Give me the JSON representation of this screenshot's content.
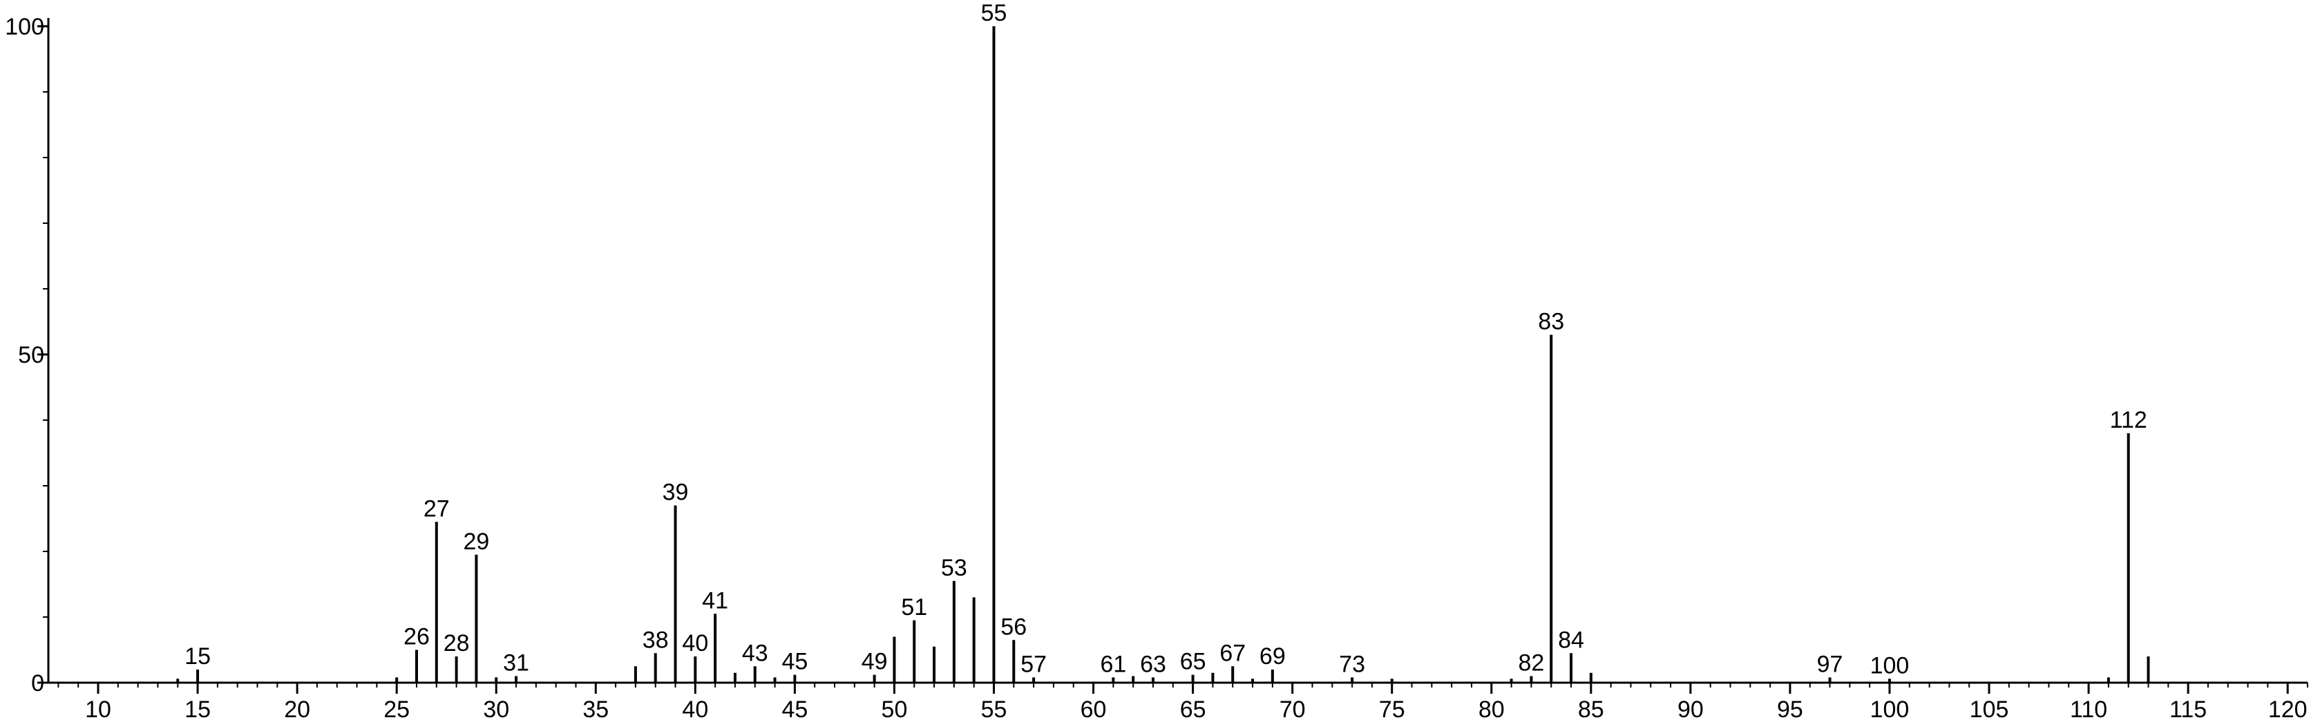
{
  "chart_data": {
    "type": "bar",
    "title": "",
    "xlabel": "",
    "ylabel": "",
    "xlim": [
      7.5,
      121
    ],
    "ylim": [
      0,
      100
    ],
    "grid": false,
    "xticks": [
      10,
      15,
      20,
      25,
      30,
      35,
      40,
      45,
      50,
      55,
      60,
      65,
      70,
      75,
      80,
      85,
      90,
      95,
      100,
      105,
      110,
      115,
      120
    ],
    "yticks": [
      0,
      50,
      100
    ],
    "peaks": [
      {
        "mz": 14,
        "intensity": 0.6,
        "label": ""
      },
      {
        "mz": 15,
        "intensity": 2,
        "label": "15"
      },
      {
        "mz": 25,
        "intensity": 0.8,
        "label": ""
      },
      {
        "mz": 26,
        "intensity": 5,
        "label": "26"
      },
      {
        "mz": 27,
        "intensity": 24.5,
        "label": "27"
      },
      {
        "mz": 28,
        "intensity": 4,
        "label": "28"
      },
      {
        "mz": 29,
        "intensity": 19.5,
        "label": "29"
      },
      {
        "mz": 30,
        "intensity": 0.8,
        "label": ""
      },
      {
        "mz": 31,
        "intensity": 1,
        "label": "31"
      },
      {
        "mz": 37,
        "intensity": 2.5,
        "label": ""
      },
      {
        "mz": 38,
        "intensity": 4.5,
        "label": "38"
      },
      {
        "mz": 39,
        "intensity": 27,
        "label": "39"
      },
      {
        "mz": 40,
        "intensity": 4,
        "label": "40"
      },
      {
        "mz": 41,
        "intensity": 10.5,
        "label": "41"
      },
      {
        "mz": 42,
        "intensity": 1.5,
        "label": ""
      },
      {
        "mz": 43,
        "intensity": 2.5,
        "label": "43"
      },
      {
        "mz": 44,
        "intensity": 0.8,
        "label": ""
      },
      {
        "mz": 45,
        "intensity": 1.2,
        "label": "45"
      },
      {
        "mz": 49,
        "intensity": 1.2,
        "label": "49"
      },
      {
        "mz": 50,
        "intensity": 7,
        "label": ""
      },
      {
        "mz": 51,
        "intensity": 9.5,
        "label": "51"
      },
      {
        "mz": 52,
        "intensity": 5.5,
        "label": ""
      },
      {
        "mz": 53,
        "intensity": 15.5,
        "label": "53"
      },
      {
        "mz": 54,
        "intensity": 13,
        "label": ""
      },
      {
        "mz": 55,
        "intensity": 100,
        "label": "55"
      },
      {
        "mz": 56,
        "intensity": 6.5,
        "label": "56"
      },
      {
        "mz": 57,
        "intensity": 0.8,
        "label": "57"
      },
      {
        "mz": 61,
        "intensity": 0.8,
        "label": "61"
      },
      {
        "mz": 62,
        "intensity": 1,
        "label": ""
      },
      {
        "mz": 63,
        "intensity": 0.8,
        "label": "63"
      },
      {
        "mz": 65,
        "intensity": 1.2,
        "label": "65"
      },
      {
        "mz": 66,
        "intensity": 1.5,
        "label": ""
      },
      {
        "mz": 67,
        "intensity": 2.5,
        "label": "67"
      },
      {
        "mz": 68,
        "intensity": 0.6,
        "label": ""
      },
      {
        "mz": 69,
        "intensity": 2,
        "label": "69"
      },
      {
        "mz": 73,
        "intensity": 0.8,
        "label": "73"
      },
      {
        "mz": 75,
        "intensity": 0.6,
        "label": ""
      },
      {
        "mz": 81,
        "intensity": 0.6,
        "label": ""
      },
      {
        "mz": 82,
        "intensity": 1,
        "label": "82"
      },
      {
        "mz": 83,
        "intensity": 53,
        "label": "83"
      },
      {
        "mz": 84,
        "intensity": 4.5,
        "label": "84"
      },
      {
        "mz": 85,
        "intensity": 1.5,
        "label": ""
      },
      {
        "mz": 97,
        "intensity": 0.8,
        "label": "97"
      },
      {
        "mz": 100,
        "intensity": 0.6,
        "label": "100"
      },
      {
        "mz": 111,
        "intensity": 0.8,
        "label": ""
      },
      {
        "mz": 112,
        "intensity": 38,
        "label": "112"
      },
      {
        "mz": 113,
        "intensity": 4,
        "label": ""
      }
    ]
  }
}
